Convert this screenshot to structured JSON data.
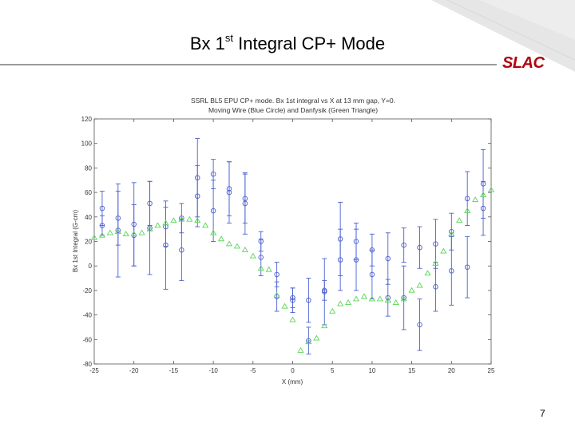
{
  "slide": {
    "title_main": "Bx 1",
    "title_sup": "st",
    "title_rest": " Integral CP+ Mode",
    "logo": "SLAC",
    "page_number": "7"
  },
  "colors": {
    "moving_wire": "#4b5fd0",
    "danfysik": "#59d659",
    "logo": "#b1040e"
  },
  "chart_data": {
    "type": "scatter",
    "title": "SSRL BL5 EPU CP+ mode. Bx 1st integral vs X at 13 mm gap, Y=0.",
    "subtitle": "Moving Wire (Blue Circle) and Danfysik (Green Triangle)",
    "xlabel": "X (mm)",
    "ylabel": "Bx 1st Integral (G-cm)",
    "xlim": [
      -25,
      25
    ],
    "ylim": [
      -80,
      120
    ],
    "xticks": [
      -25,
      -20,
      -15,
      -10,
      -5,
      0,
      5,
      10,
      15,
      20,
      25
    ],
    "yticks": [
      -80,
      -60,
      -40,
      -20,
      0,
      20,
      40,
      60,
      80,
      100,
      120
    ],
    "grid": false,
    "series": [
      {
        "name": "Moving Wire",
        "marker": "circle",
        "color": "#4b5fd0",
        "points": [
          {
            "x": -24,
            "y": 47,
            "err": 14
          },
          {
            "x": -24,
            "y": 33,
            "err": 8
          },
          {
            "x": -22,
            "y": 39,
            "err": 22
          },
          {
            "x": -22,
            "y": 29,
            "err": 38
          },
          {
            "x": -20,
            "y": 34,
            "err": 34
          },
          {
            "x": -20,
            "y": 25,
            "err": 25
          },
          {
            "x": -18,
            "y": 51,
            "err": 18
          },
          {
            "x": -18,
            "y": 31,
            "err": 38
          },
          {
            "x": -16,
            "y": 32,
            "err": 16
          },
          {
            "x": -16,
            "y": 17,
            "err": 36
          },
          {
            "x": -14,
            "y": 39,
            "err": 12
          },
          {
            "x": -14,
            "y": 13,
            "err": 25
          },
          {
            "x": -12,
            "y": 72,
            "err": 32
          },
          {
            "x": -12,
            "y": 57,
            "err": 25
          },
          {
            "x": -10,
            "y": 75,
            "err": 12
          },
          {
            "x": -10,
            "y": 45,
            "err": 25
          },
          {
            "x": -8,
            "y": 63,
            "err": 22
          },
          {
            "x": -8,
            "y": 60,
            "err": 25
          },
          {
            "x": -6,
            "y": 55,
            "err": 20
          },
          {
            "x": -6,
            "y": 51,
            "err": 25
          },
          {
            "x": -4,
            "y": 20,
            "err": 8
          },
          {
            "x": -4,
            "y": 7,
            "err": 15
          },
          {
            "x": -2,
            "y": -7,
            "err": 10
          },
          {
            "x": -2,
            "y": -25,
            "err": 12
          },
          {
            "x": 0,
            "y": -26,
            "err": 8
          },
          {
            "x": 0,
            "y": -28,
            "err": 10
          },
          {
            "x": 2,
            "y": -28,
            "err": 18
          },
          {
            "x": 2,
            "y": -61,
            "err": 11
          },
          {
            "x": 4,
            "y": -20,
            "err": 8
          },
          {
            "x": 4,
            "y": -21,
            "err": 27
          },
          {
            "x": 6,
            "y": 22,
            "err": 30
          },
          {
            "x": 6,
            "y": 5,
            "err": 25
          },
          {
            "x": 8,
            "y": 20,
            "err": 15
          },
          {
            "x": 8,
            "y": 5,
            "err": 25
          },
          {
            "x": 10,
            "y": 13,
            "err": 13
          },
          {
            "x": 10,
            "y": -7,
            "err": 20
          },
          {
            "x": 12,
            "y": 6,
            "err": 21
          },
          {
            "x": 12,
            "y": -26,
            "err": 15
          },
          {
            "x": 14,
            "y": 17,
            "err": 14
          },
          {
            "x": 14,
            "y": -26,
            "err": 26
          },
          {
            "x": 16,
            "y": 15,
            "err": 17
          },
          {
            "x": 16,
            "y": -48,
            "err": 21
          },
          {
            "x": 18,
            "y": 18,
            "err": 20
          },
          {
            "x": 18,
            "y": -17,
            "err": 20
          },
          {
            "x": 20,
            "y": 28,
            "err": 15
          },
          {
            "x": 20,
            "y": -4,
            "err": 28
          },
          {
            "x": 22,
            "y": 55,
            "err": 22
          },
          {
            "x": 22,
            "y": -1,
            "err": 25
          },
          {
            "x": 24,
            "y": 67,
            "err": 28
          },
          {
            "x": 24,
            "y": 47,
            "err": 22
          }
        ]
      },
      {
        "name": "Danfysik",
        "marker": "triangle",
        "color": "#59d659",
        "points": [
          {
            "x": -25,
            "y": 23
          },
          {
            "x": -24,
            "y": 25
          },
          {
            "x": -23,
            "y": 27
          },
          {
            "x": -22,
            "y": 28
          },
          {
            "x": -21,
            "y": 26
          },
          {
            "x": -20,
            "y": 26
          },
          {
            "x": -19,
            "y": 27
          },
          {
            "x": -18,
            "y": 30
          },
          {
            "x": -17,
            "y": 33
          },
          {
            "x": -16,
            "y": 35
          },
          {
            "x": -15,
            "y": 37
          },
          {
            "x": -14,
            "y": 38
          },
          {
            "x": -13,
            "y": 38
          },
          {
            "x": -12,
            "y": 37
          },
          {
            "x": -11,
            "y": 33
          },
          {
            "x": -10,
            "y": 27
          },
          {
            "x": -9,
            "y": 22
          },
          {
            "x": -8,
            "y": 18
          },
          {
            "x": -7,
            "y": 16
          },
          {
            "x": -6,
            "y": 13
          },
          {
            "x": -5,
            "y": 8
          },
          {
            "x": -4,
            "y": -2
          },
          {
            "x": -3,
            "y": -3
          },
          {
            "x": -2,
            "y": -24
          },
          {
            "x": -1,
            "y": -33
          },
          {
            "x": 0,
            "y": -44
          },
          {
            "x": 1,
            "y": -69
          },
          {
            "x": 2,
            "y": -62
          },
          {
            "x": 3,
            "y": -59
          },
          {
            "x": 4,
            "y": -49
          },
          {
            "x": 5,
            "y": -37
          },
          {
            "x": 6,
            "y": -31
          },
          {
            "x": 7,
            "y": -30
          },
          {
            "x": 8,
            "y": -27
          },
          {
            "x": 9,
            "y": -25
          },
          {
            "x": 10,
            "y": -27
          },
          {
            "x": 11,
            "y": -27
          },
          {
            "x": 12,
            "y": -28
          },
          {
            "x": 13,
            "y": -30
          },
          {
            "x": 14,
            "y": -27
          },
          {
            "x": 15,
            "y": -20
          },
          {
            "x": 16,
            "y": -16
          },
          {
            "x": 17,
            "y": -6
          },
          {
            "x": 18,
            "y": 2
          },
          {
            "x": 19,
            "y": 12
          },
          {
            "x": 20,
            "y": 26
          },
          {
            "x": 21,
            "y": 37
          },
          {
            "x": 22,
            "y": 45
          },
          {
            "x": 23,
            "y": 54
          },
          {
            "x": 24,
            "y": 58
          },
          {
            "x": 25,
            "y": 62
          }
        ]
      }
    ]
  }
}
